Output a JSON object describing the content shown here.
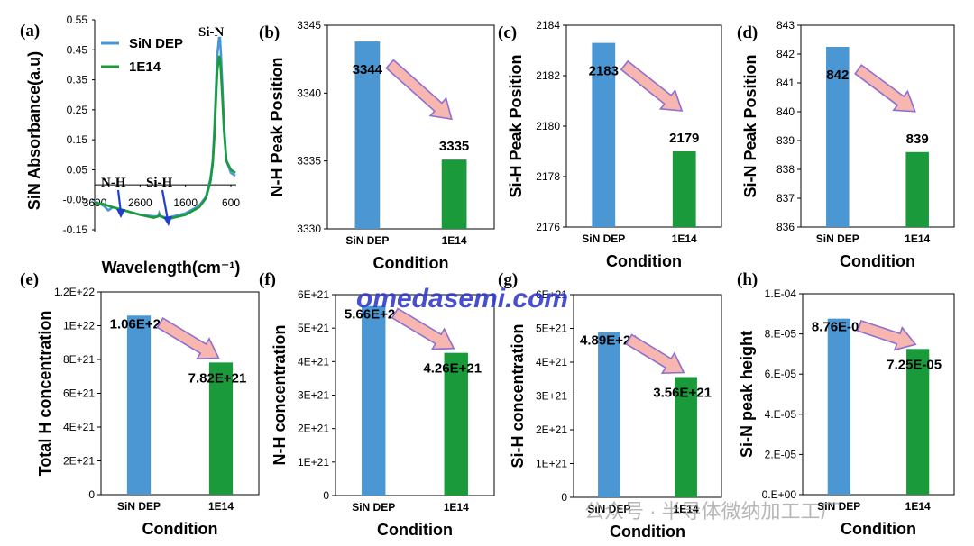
{
  "colors": {
    "sin_dep": "#4a97d4",
    "e14": "#1a9a3a",
    "arrow_fill": "#f8b6b0",
    "arrow_stroke": "#8c6fd0",
    "frame": "#000000"
  },
  "watermark": {
    "text": "omedasemi.com",
    "wechat": "公众号 · 半导体微纳加工工厂"
  },
  "chart_data": [
    {
      "id": "a",
      "panel_label": "(a)",
      "type": "line",
      "ylabel": "SiN Absorbance(a.u)",
      "xlabel": "Wavelength(cm⁻¹)",
      "ylim": [
        -0.15,
        0.55
      ],
      "yticks": [
        "0.55",
        "0.45",
        "0.35",
        "0.25",
        "0.15",
        "0.05",
        "-0.05",
        "-0.15"
      ],
      "xlim": [
        3600,
        600
      ],
      "xticks": [
        "3600",
        "2600",
        "1600",
        "600"
      ],
      "legend": "top-left",
      "annotations": [
        "N-H",
        "Si-H",
        "Si-N"
      ],
      "series": [
        {
          "name": "SiN DEP",
          "x": [
            3900,
            3600,
            3400,
            3300,
            3200,
            2600,
            2300,
            2200,
            2180,
            2150,
            2000,
            1600,
            1300,
            1150,
            1050,
            1000,
            960,
            930,
            900,
            860,
            840,
            820,
            790,
            750,
            700,
            600,
            500
          ],
          "y": [
            -0.05,
            -0.055,
            -0.07,
            -0.085,
            -0.075,
            -0.1,
            -0.105,
            -0.105,
            -0.095,
            -0.105,
            -0.11,
            -0.095,
            -0.07,
            -0.04,
            0.02,
            0.08,
            0.2,
            0.32,
            0.43,
            0.49,
            0.49,
            0.44,
            0.34,
            0.2,
            0.08,
            0.04,
            0.03
          ]
        },
        {
          "name": "1E14",
          "x": [
            3900,
            3600,
            3400,
            3300,
            3200,
            2600,
            2300,
            2200,
            2180,
            2150,
            2000,
            1600,
            1300,
            1150,
            1050,
            1000,
            960,
            930,
            900,
            860,
            840,
            820,
            790,
            750,
            700,
            600,
            500
          ],
          "y": [
            -0.055,
            -0.06,
            -0.065,
            -0.07,
            -0.075,
            -0.1,
            -0.11,
            -0.105,
            -0.1,
            -0.105,
            -0.115,
            -0.1,
            -0.075,
            -0.045,
            0.01,
            0.07,
            0.17,
            0.28,
            0.38,
            0.43,
            0.42,
            0.38,
            0.3,
            0.18,
            0.08,
            0.05,
            0.04
          ]
        }
      ]
    },
    {
      "id": "b",
      "panel_label": "(b)",
      "type": "bar",
      "ylabel": "N-H Peak Position",
      "xlabel": "Condition",
      "categories": [
        "SiN DEP",
        "1E14"
      ],
      "values": [
        3343.8,
        3335.1
      ],
      "value_labels": [
        "3344",
        "3335"
      ],
      "ylim": [
        3330,
        3345
      ],
      "yticks": [
        "3345",
        "3340",
        "3335",
        "3330"
      ]
    },
    {
      "id": "c",
      "panel_label": "(c)",
      "type": "bar",
      "ylabel": "Si-H Peak Position",
      "xlabel": "Condition",
      "categories": [
        "SiN DEP",
        "1E14"
      ],
      "values": [
        2183.3,
        2179.0
      ],
      "value_labels": [
        "2183",
        "2179"
      ],
      "ylim": [
        2176,
        2184
      ],
      "yticks": [
        "2184",
        "2182",
        "2180",
        "2178",
        "2176"
      ]
    },
    {
      "id": "d",
      "panel_label": "(d)",
      "type": "bar",
      "ylabel": "Si-N Peak Position",
      "xlabel": "Condition",
      "categories": [
        "SiN DEP",
        "1E14"
      ],
      "values": [
        842.25,
        838.6
      ],
      "value_labels": [
        "842",
        "839"
      ],
      "ylim": [
        836,
        843
      ],
      "yticks": [
        "843",
        "842",
        "841",
        "840",
        "839",
        "838",
        "837",
        "836"
      ]
    },
    {
      "id": "e",
      "panel_label": "(e)",
      "type": "bar",
      "ylabel": "Total H concentration",
      "xlabel": "Condition",
      "categories": [
        "SiN DEP",
        "1E14"
      ],
      "values": [
        1.06e+22,
        7.82e+21
      ],
      "value_labels": [
        "1.06E+22",
        "7.82E+21"
      ],
      "ylim": [
        0,
        1.2e+22
      ],
      "yticks": [
        "1.2E+22",
        "1E+22",
        "8E+21",
        "6E+21",
        "4E+21",
        "2E+21",
        "0"
      ]
    },
    {
      "id": "f",
      "panel_label": "(f)",
      "type": "bar",
      "ylabel": "N-H concentration",
      "xlabel": "Condition",
      "categories": [
        "SiN DEP",
        "1E14"
      ],
      "values": [
        5.66e+21,
        4.26e+21
      ],
      "value_labels": [
        "5.66E+21",
        "4.26E+21"
      ],
      "ylim": [
        0,
        6e+21
      ],
      "yticks": [
        "6E+21",
        "5E+21",
        "4E+21",
        "3E+21",
        "2E+21",
        "1E+21",
        "0"
      ]
    },
    {
      "id": "g",
      "panel_label": "(g)",
      "type": "bar",
      "ylabel": "Si-H concentration",
      "xlabel": "Condition",
      "categories": [
        "SiN DEP",
        "1E14"
      ],
      "values": [
        4.89e+21,
        3.56e+21
      ],
      "value_labels": [
        "4.89E+21",
        "3.56E+21"
      ],
      "ylim": [
        0,
        6e+21
      ],
      "yticks": [
        "6E+21",
        "5E+21",
        "4E+21",
        "3E+21",
        "2E+21",
        "1E+21",
        "0"
      ]
    },
    {
      "id": "h",
      "panel_label": "(h)",
      "type": "bar",
      "ylabel": "Si-N peak height",
      "xlabel": "Condition",
      "categories": [
        "SiN DEP",
        "1E14"
      ],
      "values": [
        8.76e-05,
        7.25e-05
      ],
      "value_labels": [
        "8.76E-05",
        "7.25E-05"
      ],
      "ylim": [
        0,
        0.0001
      ],
      "yticks": [
        "1.E-04",
        "8.E-05",
        "6.E-05",
        "4.E-05",
        "2.E-05",
        "0.E+00"
      ]
    }
  ]
}
